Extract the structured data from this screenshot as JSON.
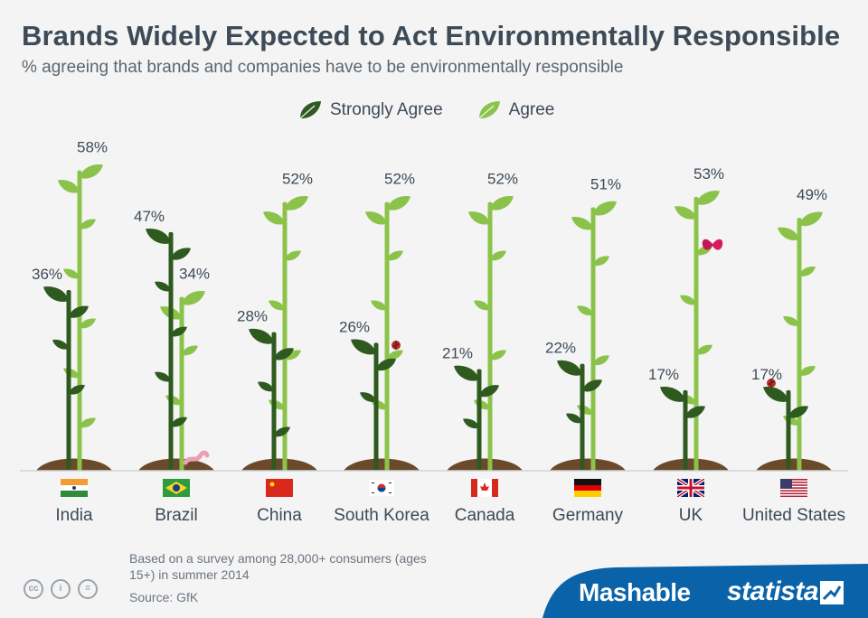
{
  "header": {
    "title": "Brands Widely Expected to Act Environmentally Responsible",
    "subtitle": "% agreeing that brands and companies have to be environmentally responsible"
  },
  "legend": {
    "items": [
      {
        "label": "Strongly Agree",
        "color": "#2e5a1f"
      },
      {
        "label": "Agree",
        "color": "#8bc34a"
      }
    ]
  },
  "chart_data": {
    "type": "bar",
    "title": "Brands Widely Expected to Act Environmentally Responsible",
    "subtitle": "% agreeing that brands and companies have to be environmentally responsible",
    "categories": [
      "India",
      "Brazil",
      "China",
      "South Korea",
      "Canada",
      "Germany",
      "UK",
      "United States"
    ],
    "series": [
      {
        "name": "Strongly Agree",
        "values": [
          36,
          47,
          28,
          26,
          21,
          22,
          17,
          17
        ],
        "color": "#2e5a1f"
      },
      {
        "name": "Agree",
        "values": [
          58,
          34,
          52,
          52,
          52,
          51,
          53,
          49
        ],
        "color": "#8bc34a"
      }
    ],
    "value_labels": [
      [
        "36%",
        "47%",
        "28%",
        "26%",
        "21%",
        "22%",
        "17%",
        "17%"
      ],
      [
        "58%",
        "34%",
        "52%",
        "52%",
        "52%",
        "51%",
        "53%",
        "49%"
      ]
    ],
    "ylim": [
      0,
      60
    ],
    "xlabel": "",
    "ylabel": "",
    "legend_position": "top-center",
    "grid": false
  },
  "countries": [
    {
      "name": "India",
      "flag": "india-flag"
    },
    {
      "name": "Brazil",
      "flag": "brazil-flag"
    },
    {
      "name": "China",
      "flag": "china-flag"
    },
    {
      "name": "South Korea",
      "flag": "south-korea-flag"
    },
    {
      "name": "Canada",
      "flag": "canada-flag"
    },
    {
      "name": "Germany",
      "flag": "germany-flag"
    },
    {
      "name": "UK",
      "flag": "uk-flag"
    },
    {
      "name": "United States",
      "flag": "usa-flag"
    }
  ],
  "footer": {
    "note": "Based on a survey among 28,000+ consumers (ages 15+) in summer 2014",
    "source": "Source: GfK",
    "brand_mashable": "Mashable",
    "brand_statista": "statista",
    "band_color": "#0a63a8",
    "license_icons": [
      "cc-icon",
      "attribution-icon",
      "no-derivatives-icon"
    ]
  }
}
